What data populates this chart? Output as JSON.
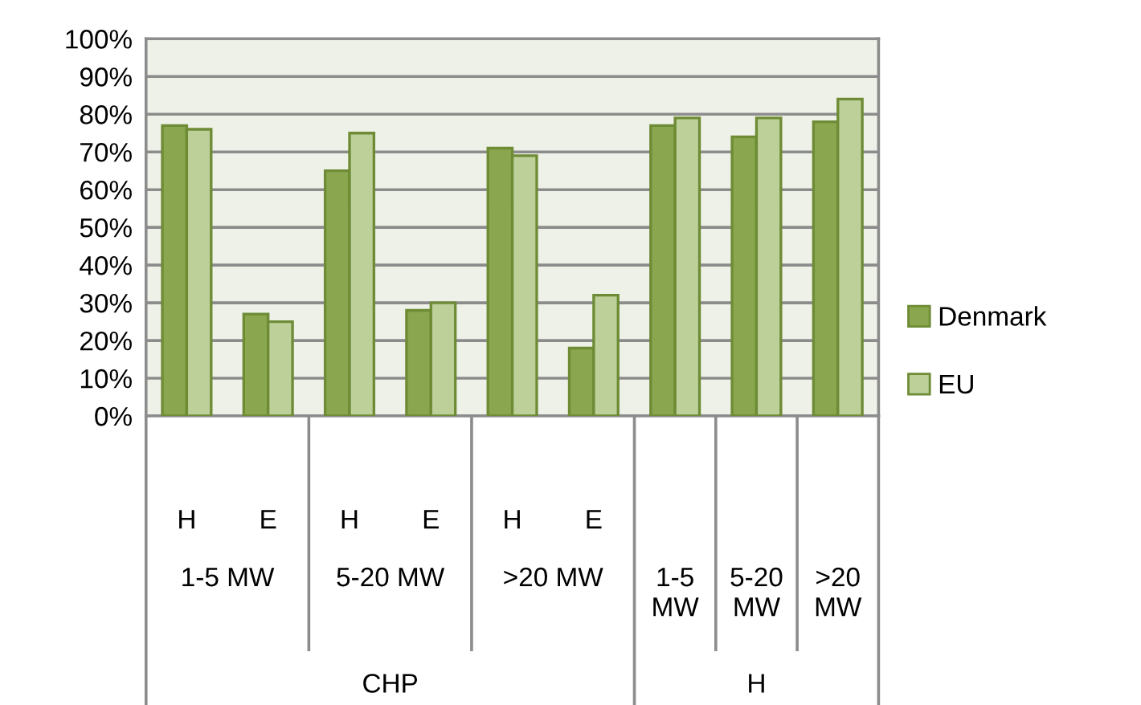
{
  "chart_data": {
    "type": "bar",
    "categories": [
      "H",
      "E",
      "H",
      "E",
      "H",
      "E",
      null,
      null,
      null
    ],
    "series": [
      {
        "name": "Denmark",
        "color": "#8aa64e",
        "values": [
          77,
          27,
          65,
          28,
          71,
          18,
          77,
          74,
          78
        ]
      },
      {
        "name": "EU",
        "color": "#bdd09a",
        "values": [
          76,
          25,
          75,
          30,
          69,
          32,
          79,
          79,
          84
        ]
      }
    ],
    "annotations": [
      "1-5 MW",
      "5-20 MW",
      ">20 MW",
      "1-5 MW",
      "5-20 MW",
      ">20 MW",
      "CHP",
      "H"
    ],
    "ylim": [
      0,
      100
    ],
    "yticks": [
      {
        "value": 0,
        "label": "0%"
      },
      {
        "value": 10,
        "label": "10%"
      },
      {
        "value": 20,
        "label": "20%"
      },
      {
        "value": 30,
        "label": "30%"
      },
      {
        "value": 40,
        "label": "40%"
      },
      {
        "value": 50,
        "label": "50%"
      },
      {
        "value": 60,
        "label": "60%"
      },
      {
        "value": 70,
        "label": "70%"
      },
      {
        "value": 80,
        "label": "80%"
      },
      {
        "value": 90,
        "label": "90%"
      },
      {
        "value": 100,
        "label": "100%"
      }
    ],
    "grid": "y",
    "legend": "right"
  }
}
